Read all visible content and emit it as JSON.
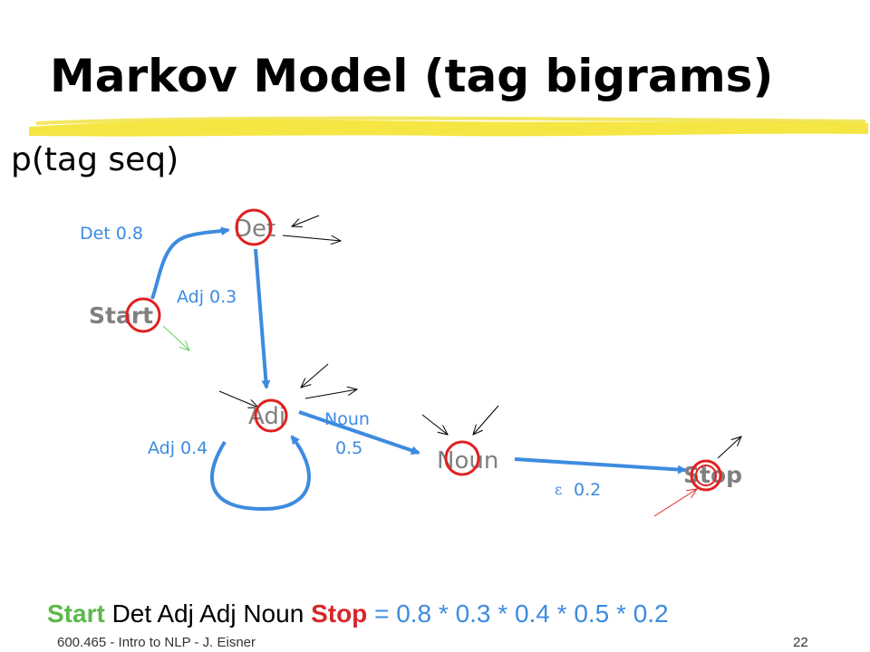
{
  "slide": {
    "title": "Markov Model (tag bigrams)",
    "subtitle": "p(tag seq)",
    "highlight_color": "#f5e53a"
  },
  "diagram": {
    "nodes": {
      "start": "Start",
      "det": "Det",
      "adj": "Adj",
      "noun": "Noun",
      "stop": "Stop"
    },
    "edges": {
      "start_det": "Det 0.8",
      "det_adj": "Adj 0.3",
      "adj_adj": "Adj 0.4",
      "adj_noun_line1": "Noun",
      "adj_noun_line2": "0.5",
      "noun_stop_symbol": "ε",
      "noun_stop_value": "0.2"
    },
    "colors": {
      "edge": "#3d8be0",
      "node_text": "#808080",
      "circle": "#e02020",
      "start_path_arrow": "#60d060",
      "stop_path_arrow": "#e02020"
    }
  },
  "equation": {
    "start": "Start",
    "words": "Det Adj Adj Noun",
    "stop": "Stop",
    "result": "= 0.8 * 0.3 * 0.4 * 0.5 * 0.2"
  },
  "footer": {
    "course": "600.465 - Intro to NLP - J. Eisner",
    "page": "22"
  }
}
